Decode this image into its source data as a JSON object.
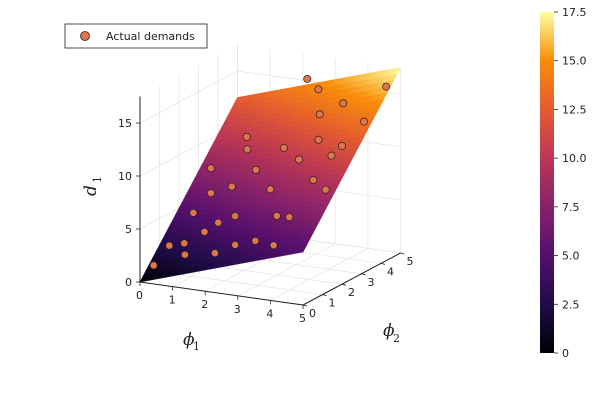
{
  "chart_data": {
    "type": "scatter",
    "surface": "plane d1 = phi1 + 2.5*phi2",
    "xlabel": "ϕ",
    "xlabel_sub": "1",
    "ylabel": "ϕ",
    "ylabel_sub": "2",
    "zlabel": "d",
    "zlabel_sub": "1",
    "x_ticks": [
      "0",
      "1",
      "2",
      "3",
      "4",
      "5"
    ],
    "y_ticks": [
      "0",
      "1",
      "2",
      "3",
      "4",
      "5"
    ],
    "z_ticks": [
      "0",
      "5",
      "10",
      "15"
    ],
    "xlim": [
      0,
      5
    ],
    "ylim": [
      0,
      5
    ],
    "zlim": [
      0,
      17.5
    ],
    "legend": {
      "label": "Actual demands",
      "position": "top-left"
    },
    "colorbar": {
      "colormap": "inferno",
      "range": [
        0,
        17.5
      ],
      "ticks": [
        "0",
        "2.5",
        "5.0",
        "7.5",
        "10.0",
        "12.5",
        "15.0",
        "17.5"
      ]
    },
    "grid": true,
    "points_color": "#e0744a",
    "points": [
      {
        "x": 0.3,
        "y": 0.2,
        "z": 1.5
      },
      {
        "x": 0.6,
        "y": 0.5,
        "z": 3.2
      },
      {
        "x": 1.0,
        "y": 0.6,
        "z": 3.5
      },
      {
        "x": 1.2,
        "y": 0.3,
        "z": 2.8
      },
      {
        "x": 1.5,
        "y": 0.8,
        "z": 4.6
      },
      {
        "x": 2.0,
        "y": 0.5,
        "z": 3.1
      },
      {
        "x": 2.5,
        "y": 0.7,
        "z": 3.9
      },
      {
        "x": 1.8,
        "y": 1.0,
        "z": 5.4
      },
      {
        "x": 2.2,
        "y": 1.2,
        "z": 6.0
      },
      {
        "x": 0.8,
        "y": 1.4,
        "z": 5.5
      },
      {
        "x": 1.1,
        "y": 1.8,
        "z": 7.1
      },
      {
        "x": 3.0,
        "y": 0.9,
        "z": 4.3
      },
      {
        "x": 3.5,
        "y": 1.0,
        "z": 4.0
      },
      {
        "x": 3.3,
        "y": 1.5,
        "z": 6.2
      },
      {
        "x": 2.8,
        "y": 2.0,
        "z": 8.0
      },
      {
        "x": 1.5,
        "y": 2.2,
        "z": 7.5
      },
      {
        "x": 2.0,
        "y": 2.6,
        "z": 8.9
      },
      {
        "x": 3.8,
        "y": 1.3,
        "z": 6.5
      },
      {
        "x": 4.0,
        "y": 2.2,
        "z": 9.2
      },
      {
        "x": 3.2,
        "y": 2.8,
        "z": 10.2
      },
      {
        "x": 2.5,
        "y": 3.2,
        "z": 10.6
      },
      {
        "x": 4.2,
        "y": 2.8,
        "z": 11.0
      },
      {
        "x": 1.2,
        "y": 3.5,
        "z": 9.6
      },
      {
        "x": 1.0,
        "y": 3.8,
        "z": 10.4
      },
      {
        "x": 3.5,
        "y": 3.3,
        "z": 11.7
      },
      {
        "x": 4.4,
        "y": 3.0,
        "z": 11.8
      },
      {
        "x": 3.0,
        "y": 4.2,
        "z": 13.0
      },
      {
        "x": 4.6,
        "y": 3.8,
        "z": 13.4
      },
      {
        "x": 3.6,
        "y": 4.4,
        "z": 14.1
      },
      {
        "x": 2.6,
        "y": 4.8,
        "z": 14.6
      },
      {
        "x": 4.8,
        "y": 4.6,
        "z": 16.0
      },
      {
        "x": 2.2,
        "y": 4.9,
        "z": 15.3
      },
      {
        "x": 4.5,
        "y": 2.0,
        "z": 8.7
      },
      {
        "x": 0.5,
        "y": 2.8,
        "z": 8.2
      }
    ]
  }
}
